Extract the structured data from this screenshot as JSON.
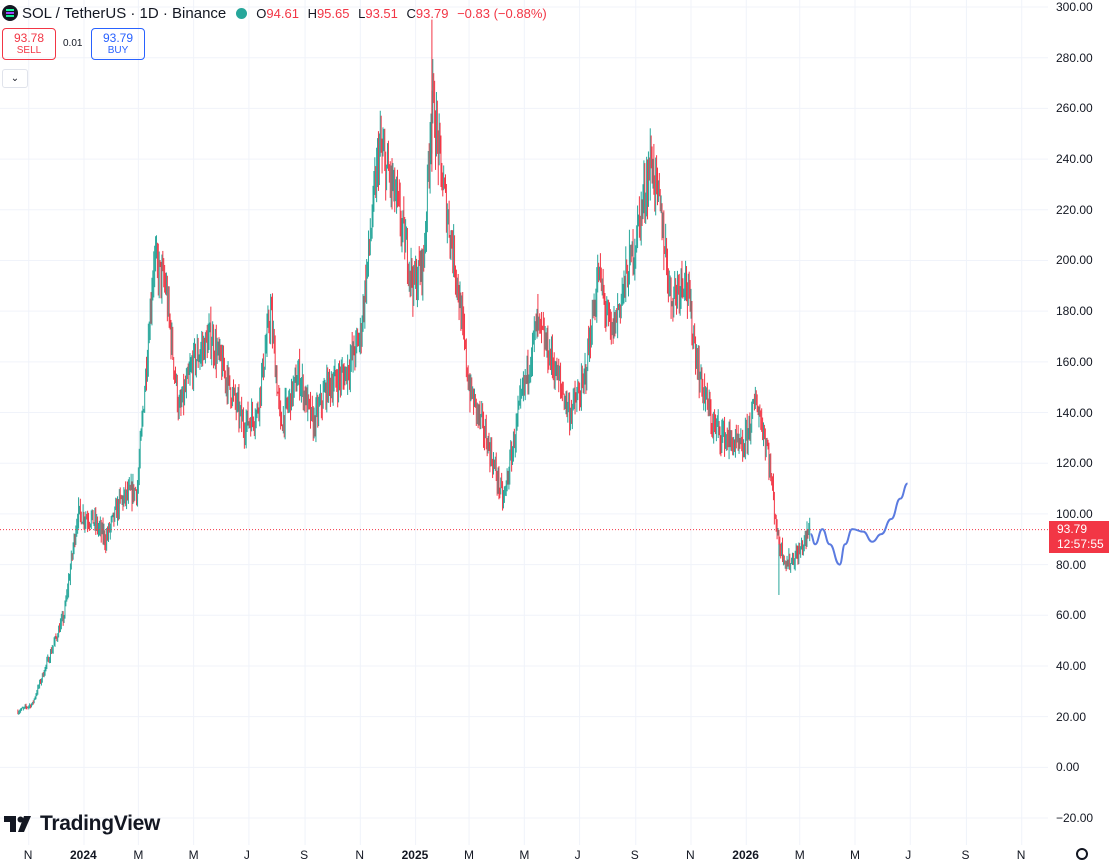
{
  "header": {
    "symbol": "SOL / TetherUS · 1D · Binance",
    "open_label": "O",
    "open": "94.61",
    "high_label": "H",
    "high": "95.65",
    "low_label": "L",
    "low": "93.51",
    "close_label": "C",
    "close": "93.79",
    "change": "−0.83 (−0.88%)"
  },
  "trade": {
    "sell_price": "93.78",
    "sell_label": "SELL",
    "spread": "0.01",
    "buy_price": "93.79",
    "buy_label": "BUY"
  },
  "price_tag": {
    "price": "93.79",
    "countdown": "12:57:55"
  },
  "brand": {
    "name": "TradingView"
  },
  "colors": {
    "up": "#26a69a",
    "down": "#f23645",
    "drawing": "#5b7be0",
    "price_line": "#f23645",
    "accent": "#2962ff"
  },
  "icons": {
    "coin": "solana-icon",
    "status": "live-dot-icon",
    "collapse": "chevron-down-icon",
    "settings": "gear-icon"
  },
  "chart_data": {
    "type": "candlestick",
    "interval": "1D",
    "y_ticks": [
      "300.00",
      "280.00",
      "260.00",
      "240.00",
      "220.00",
      "200.00",
      "180.00",
      "160.00",
      "140.00",
      "120.00",
      "100.00",
      "80.00",
      "60.00",
      "40.00",
      "20.00",
      "0.00",
      "−20.00"
    ],
    "y_tick_values": [
      300,
      280,
      260,
      240,
      220,
      200,
      180,
      160,
      140,
      120,
      100,
      80,
      60,
      40,
      20,
      0,
      -20
    ],
    "ylim": [
      -25,
      303
    ],
    "x_tick_labels": [
      "N",
      "2024",
      "M",
      "M",
      "J",
      "S",
      "N",
      "2025",
      "M",
      "M",
      "J",
      "S",
      "N",
      "2026",
      "M",
      "M",
      "J",
      "S",
      "N"
    ],
    "x_tick_dates": [
      "2023-11",
      "2024-01",
      "2024-03",
      "2024-05",
      "2024-07",
      "2024-09",
      "2024-11",
      "2025-01",
      "2025-03",
      "2025-05",
      "2025-07",
      "2025-09",
      "2025-11",
      "2026-01",
      "2026-03",
      "2026-05",
      "2026-07",
      "2026-09",
      "2026-11"
    ],
    "current_price": 93.79,
    "grid": true,
    "price_path": [
      [
        "2023-10-20",
        22
      ],
      [
        "2023-11-05",
        25
      ],
      [
        "2023-11-25",
        45
      ],
      [
        "2023-12-10",
        60
      ],
      [
        "2023-12-25",
        100
      ],
      [
        "2024-01-10",
        98
      ],
      [
        "2024-01-25",
        90
      ],
      [
        "2024-02-10",
        105
      ],
      [
        "2024-02-29",
        110
      ],
      [
        "2024-03-18",
        200
      ],
      [
        "2024-03-31",
        190
      ],
      [
        "2024-04-15",
        140
      ],
      [
        "2024-05-01",
        160
      ],
      [
        "2024-05-20",
        170
      ],
      [
        "2024-06-10",
        150
      ],
      [
        "2024-06-25",
        135
      ],
      [
        "2024-07-10",
        140
      ],
      [
        "2024-07-25",
        180
      ],
      [
        "2024-08-05",
        135
      ],
      [
        "2024-08-25",
        155
      ],
      [
        "2024-09-10",
        135
      ],
      [
        "2024-09-25",
        150
      ],
      [
        "2024-10-15",
        155
      ],
      [
        "2024-11-01",
        170
      ],
      [
        "2024-11-22",
        245
      ],
      [
        "2024-12-10",
        225
      ],
      [
        "2024-12-30",
        190
      ],
      [
        "2025-01-10",
        200
      ],
      [
        "2025-01-19",
        265
      ],
      [
        "2025-01-31",
        230
      ],
      [
        "2025-02-15",
        195
      ],
      [
        "2025-03-01",
        150
      ],
      [
        "2025-03-20",
        130
      ],
      [
        "2025-04-08",
        105
      ],
      [
        "2025-04-25",
        140
      ],
      [
        "2025-05-15",
        175
      ],
      [
        "2025-06-01",
        160
      ],
      [
        "2025-06-20",
        140
      ],
      [
        "2025-07-05",
        150
      ],
      [
        "2025-07-22",
        195
      ],
      [
        "2025-08-05",
        170
      ],
      [
        "2025-08-30",
        205
      ],
      [
        "2025-09-18",
        240
      ],
      [
        "2025-09-30",
        215
      ],
      [
        "2025-10-10",
        185
      ],
      [
        "2025-10-25",
        195
      ],
      [
        "2025-11-10",
        155
      ],
      [
        "2025-11-25",
        135
      ],
      [
        "2025-12-10",
        130
      ],
      [
        "2025-12-28",
        125
      ],
      [
        "2026-01-12",
        145
      ],
      [
        "2026-01-25",
        125
      ],
      [
        "2026-02-05",
        90
      ],
      [
        "2026-02-15",
        80
      ],
      [
        "2026-03-01",
        85
      ],
      [
        "2026-03-12",
        93.79
      ]
    ],
    "drawing_path": [
      [
        "2026-03-13",
        92
      ],
      [
        "2026-03-18",
        88
      ],
      [
        "2026-03-26",
        94
      ],
      [
        "2026-04-03",
        88
      ],
      [
        "2026-04-14",
        80
      ],
      [
        "2026-04-20",
        88
      ],
      [
        "2026-04-28",
        94
      ],
      [
        "2026-05-10",
        93
      ],
      [
        "2026-05-20",
        89
      ],
      [
        "2026-05-30",
        92
      ],
      [
        "2026-06-10",
        98
      ],
      [
        "2026-06-20",
        106
      ],
      [
        "2026-06-28",
        112
      ]
    ],
    "key_points": {
      "ath_high": [
        "2025-01-19",
        295
      ],
      "low_2026": [
        "2026-02-06",
        68
      ]
    }
  }
}
